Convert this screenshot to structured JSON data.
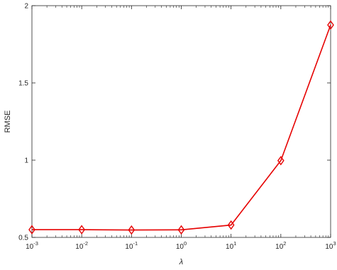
{
  "chart_data": {
    "type": "line",
    "xscale": "log",
    "x": [
      0.001,
      0.01,
      0.1,
      1,
      10,
      100,
      1000
    ],
    "series": [
      {
        "values": [
          0.55,
          0.55,
          0.548,
          0.549,
          0.58,
          0.997,
          1.875
        ],
        "color": "#e60000",
        "marker": "diamond"
      }
    ],
    "xlabel": "λ",
    "ylabel": "RMSE",
    "xlim": [
      0.001,
      1000
    ],
    "ylim": [
      0.5,
      2
    ],
    "xticks": [
      {
        "base": "10",
        "exp": "-3"
      },
      {
        "base": "10",
        "exp": "-2"
      },
      {
        "base": "10",
        "exp": "-1"
      },
      {
        "base": "10",
        "exp": "0"
      },
      {
        "base": "10",
        "exp": "1"
      },
      {
        "base": "10",
        "exp": "2"
      },
      {
        "base": "10",
        "exp": "3"
      }
    ],
    "yticks": [
      "0.5",
      "1",
      "1.5",
      "2"
    ],
    "grid": false,
    "legend": "none"
  }
}
